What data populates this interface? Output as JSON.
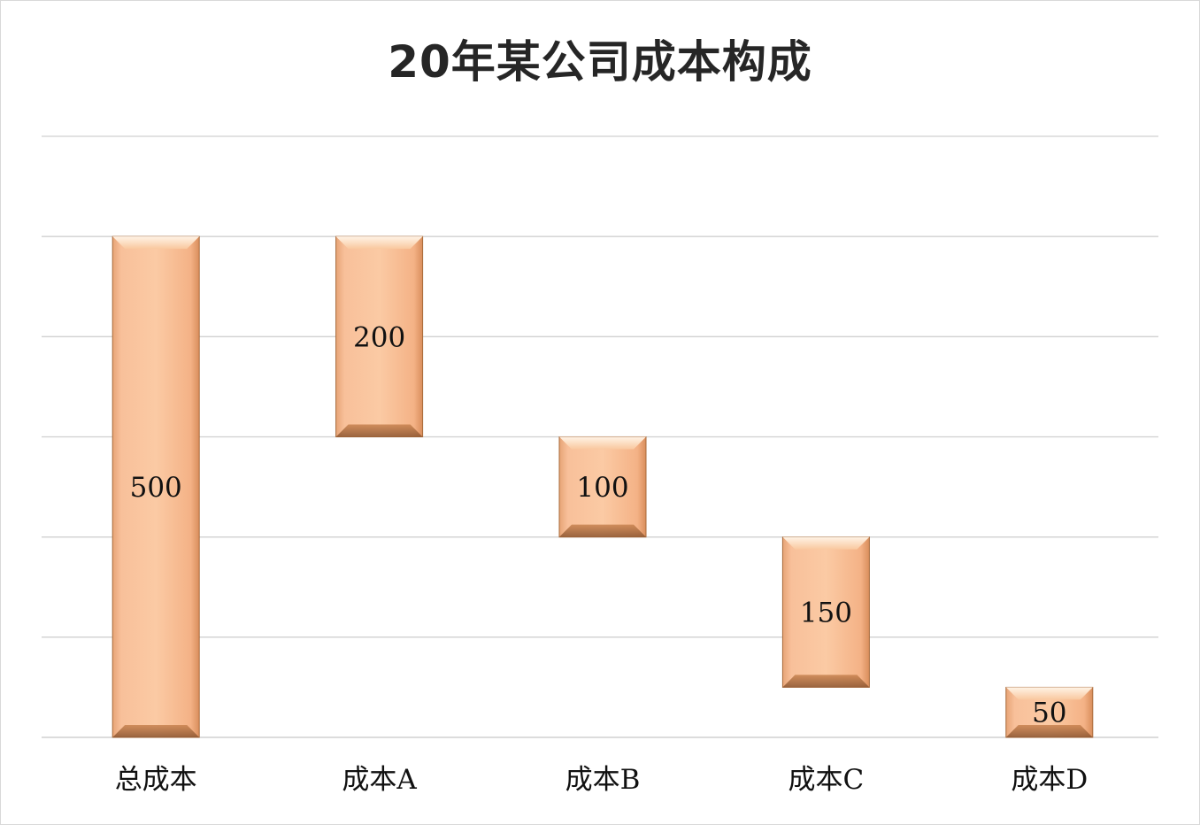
{
  "chart_data": {
    "type": "bar",
    "subtype": "waterfall",
    "title": "20年某公司成本构成",
    "categories": [
      "总成本",
      "成本A",
      "成本B",
      "成本C",
      "成本D"
    ],
    "values": [
      500,
      200,
      100,
      150,
      50
    ],
    "bases": [
      0,
      300,
      200,
      50,
      0
    ],
    "value_labels": [
      "500",
      "200",
      "100",
      "150",
      "50"
    ],
    "ylim": [
      0,
      600
    ],
    "grid": true,
    "legend": "none",
    "colors": {
      "bar": "#f6b887",
      "bar_edge": "#a86a3a",
      "grid": "#d0d0d0"
    }
  }
}
